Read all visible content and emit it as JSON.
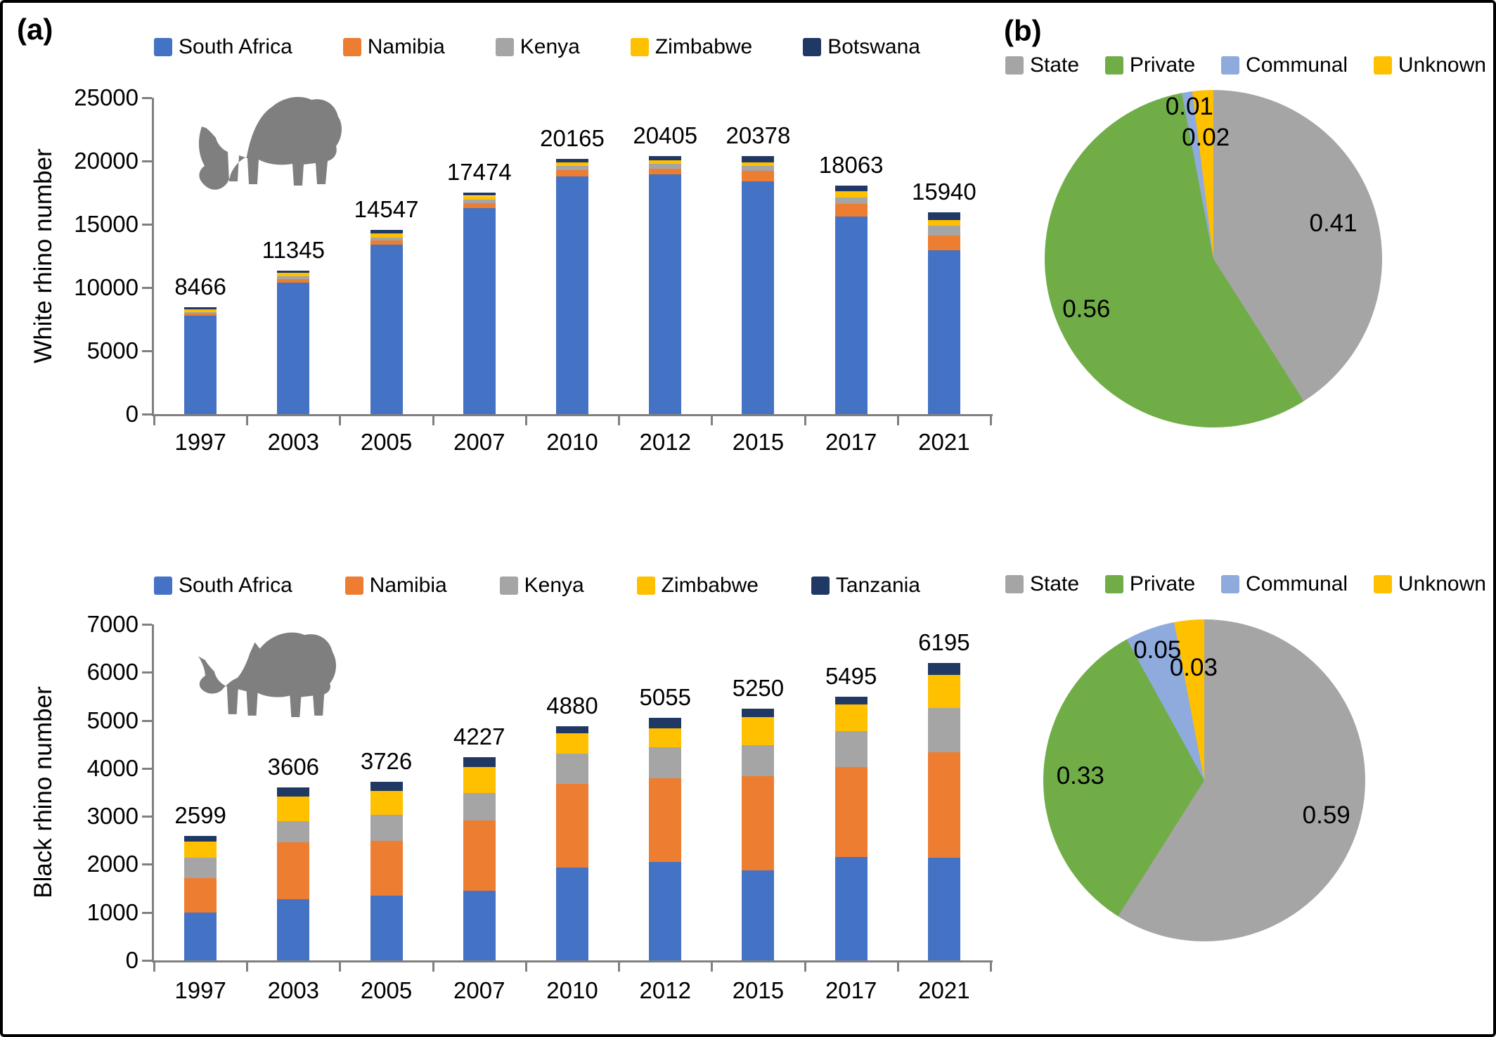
{
  "panels": {
    "a_label": "(a)",
    "b_label": "(b)"
  },
  "colors": {
    "South Africa": "#4472C4",
    "Namibia": "#ED7D31",
    "Kenya": "#A5A5A5",
    "Zimbabwe": "#FFC000",
    "Botswana": "#203864",
    "Tanzania": "#203864",
    "State": "#A5A5A5",
    "Private": "#70AD47",
    "Communal": "#8FAADC",
    "Unknown": "#FFC000",
    "axis": "#808080",
    "rhino": "#7F7F7F",
    "text": "#000000"
  },
  "chart_data": [
    {
      "id": "white-rhino-population",
      "type": "bar",
      "stacked": true,
      "ylabel": "White rhino number",
      "ylim": [
        0,
        25000
      ],
      "ytick_step": 5000,
      "yticks": [
        "0",
        "5000",
        "10000",
        "15000",
        "20000",
        "25000"
      ],
      "grid": false,
      "legend_position": "top",
      "categories": [
        "1997",
        "2003",
        "2005",
        "2007",
        "2010",
        "2012",
        "2015",
        "2017",
        "2021"
      ],
      "series": [
        {
          "name": "South Africa",
          "values": [
            7770,
            10400,
            13380,
            16260,
            18790,
            18930,
            18410,
            15630,
            12950
          ]
        },
        {
          "name": "Namibia",
          "values": [
            160,
            290,
            330,
            390,
            470,
            470,
            800,
            1000,
            1150
          ]
        },
        {
          "name": "Kenya",
          "values": [
            140,
            210,
            250,
            270,
            350,
            360,
            400,
            500,
            800
          ]
        },
        {
          "name": "Zimbabwe",
          "values": [
            230,
            250,
            340,
            330,
            290,
            290,
            290,
            470,
            450
          ]
        },
        {
          "name": "Botswana",
          "values": [
            166,
            195,
            247,
            224,
            265,
            355,
            478,
            463,
            590
          ]
        }
      ],
      "totals": [
        "8466",
        "11345",
        "14547",
        "17474",
        "20165",
        "20405",
        "20378",
        "18063",
        "15940"
      ]
    },
    {
      "id": "black-rhino-population",
      "type": "bar",
      "stacked": true,
      "ylabel": "Black rhino number",
      "ylim": [
        0,
        7000
      ],
      "ytick_step": 1000,
      "yticks": [
        "0",
        "1000",
        "2000",
        "3000",
        "4000",
        "5000",
        "6000",
        "7000"
      ],
      "grid": false,
      "legend_position": "top",
      "categories": [
        "1997",
        "2003",
        "2005",
        "2007",
        "2010",
        "2012",
        "2015",
        "2017",
        "2021"
      ],
      "series": [
        {
          "name": "South Africa",
          "values": [
            1000,
            1270,
            1350,
            1450,
            1930,
            2050,
            1870,
            2150,
            2140
          ]
        },
        {
          "name": "Namibia",
          "values": [
            720,
            1190,
            1140,
            1460,
            1750,
            1750,
            1960,
            1870,
            2200
          ]
        },
        {
          "name": "Kenya",
          "values": [
            420,
            440,
            540,
            580,
            620,
            630,
            650,
            750,
            920
          ]
        },
        {
          "name": "Zimbabwe",
          "values": [
            340,
            510,
            500,
            540,
            430,
            400,
            580,
            560,
            680
          ]
        },
        {
          "name": "Tanzania",
          "values": [
            119,
            196,
            196,
            197,
            150,
            225,
            190,
            165,
            255
          ]
        }
      ],
      "totals": [
        "2599",
        "3606",
        "3726",
        "4227",
        "4880",
        "5055",
        "5250",
        "5495",
        "6195"
      ]
    },
    {
      "id": "white-rhino-ownership",
      "type": "pie",
      "legend_position": "top",
      "labels": [
        "State",
        "Private",
        "Communal",
        "Unknown"
      ],
      "values": [
        0.41,
        0.56,
        0.01,
        0.02
      ],
      "value_labels": [
        "0.41",
        "0.56",
        "0.01",
        "0.02"
      ]
    },
    {
      "id": "black-rhino-ownership",
      "type": "pie",
      "legend_position": "top",
      "labels": [
        "State",
        "Private",
        "Communal",
        "Unknown"
      ],
      "values": [
        0.59,
        0.33,
        0.05,
        0.03
      ],
      "value_labels": [
        "0.59",
        "0.33",
        "0.05",
        "0.03"
      ]
    }
  ]
}
